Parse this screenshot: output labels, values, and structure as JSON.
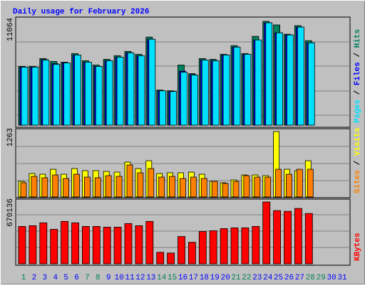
{
  "chart_data": [
    {
      "type": "bar",
      "title": "Daily usage for February 2026",
      "series": [
        {
          "name": "Hits",
          "color": "#00805c",
          "values": [
            6257,
            6257,
            7096,
            6791,
            6714,
            7630,
            6867,
            6409,
            7020,
            7401,
            7859,
            7554,
            9385,
            3739,
            3662,
            6409,
            5494,
            7096,
            7020,
            7554,
            8470,
            7630,
            9461,
            11064,
            10682,
            9690,
            10606,
            9004,
            null,
            null,
            null
          ]
        },
        {
          "name": "Files",
          "color": "#0000ff",
          "values": [
            6180,
            6180,
            6980,
            6560,
            6640,
            7480,
            6720,
            6260,
            6880,
            7250,
            7720,
            7400,
            9150,
            3660,
            3590,
            5750,
            5380,
            6960,
            6880,
            7480,
            8320,
            7560,
            9080,
            10910,
            9840,
            9610,
            10450,
            8780,
            null,
            null,
            null
          ]
        },
        {
          "name": "Pages",
          "color": "#00e0ff",
          "values": [
            6180,
            6180,
            6944,
            6486,
            6638,
            7478,
            6714,
            6256,
            6867,
            7248,
            7706,
            7401,
            9156,
            3662,
            3586,
            5646,
            5341,
            6944,
            6867,
            7478,
            8317,
            7554,
            9080,
            10911,
            9843,
            9614,
            10453,
            8775,
            null,
            null,
            null
          ]
        }
      ],
      "ylim": [
        0,
        11064
      ],
      "yticks": [
        11064
      ],
      "legend_separator": " / "
    },
    {
      "type": "bar",
      "series": [
        {
          "name": "Visits",
          "color": "#ffff00",
          "values": [
            302,
            453,
            439,
            535,
            439,
            549,
            508,
            508,
            494,
            480,
            673,
            549,
            700,
            453,
            467,
            467,
            480,
            439,
            302,
            275,
            329,
            425,
            425,
            412,
            1263,
            535,
            508,
            700,
            null,
            null,
            null
          ]
        },
        {
          "name": "Sites",
          "color": "#ff8000",
          "values": [
            275,
            398,
            371,
            425,
            357,
            439,
            384,
            371,
            412,
            398,
            618,
            467,
            549,
            384,
            398,
            357,
            384,
            357,
            302,
            261,
            302,
            412,
            384,
            384,
            535,
            439,
            535,
            535,
            null,
            null,
            null
          ]
        }
      ],
      "ylim": [
        0,
        1263
      ],
      "yticks": [
        1263
      ],
      "legend_separator": " / "
    },
    {
      "type": "bar",
      "categories": [
        "1",
        "2",
        "3",
        "4",
        "5",
        "6",
        "7",
        "8",
        "9",
        "10",
        "11",
        "12",
        "13",
        "14",
        "15",
        "16",
        "17",
        "18",
        "19",
        "20",
        "21",
        "22",
        "23",
        "24",
        "25",
        "26",
        "27",
        "28",
        "29",
        "30",
        "31"
      ],
      "category_colors": [
        "#00805c",
        "#0000ff",
        "#0000ff",
        "#0000ff",
        "#0000ff",
        "#0000ff",
        "#00805c",
        "#00805c",
        "#0000ff",
        "#0000ff",
        "#0000ff",
        "#0000ff",
        "#0000ff",
        "#00805c",
        "#00805c",
        "#0000ff",
        "#0000ff",
        "#0000ff",
        "#0000ff",
        "#0000ff",
        "#00805c",
        "#00805c",
        "#0000ff",
        "#0000ff",
        "#0000ff",
        "#0000ff",
        "#0000ff",
        "#00805c",
        "#00805c",
        "#0000ff",
        "#0000ff"
      ],
      "series": [
        {
          "name": "KBytes",
          "color": "#ff0000",
          "values": [
            405200,
            412990,
            444160,
            374020,
            459740,
            444160,
            405200,
            405200,
            397410,
            397410,
            436370,
            412990,
            459740,
            124670,
            116880,
            295910,
            233570,
            350640,
            358430,
            381800,
            389580,
            389580,
            405200,
            670136,
            576610,
            568820,
            599990,
            545450,
            null,
            null,
            null
          ]
        }
      ],
      "ylim": [
        0,
        670136
      ],
      "yticks": [
        670136
      ]
    }
  ]
}
